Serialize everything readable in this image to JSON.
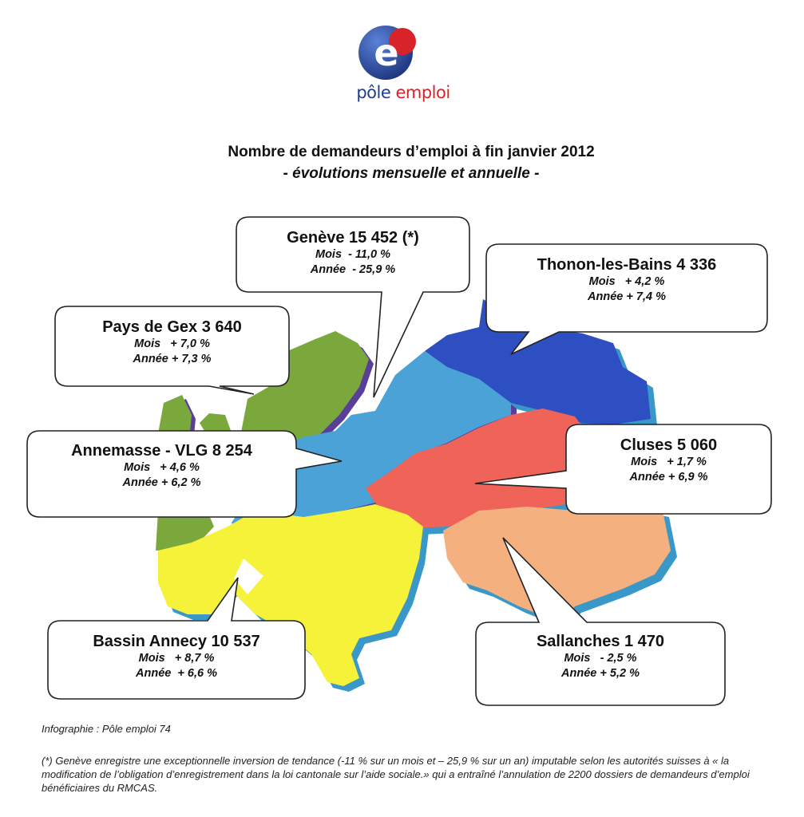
{
  "brand": {
    "text_part1": "pôle ",
    "text_part2": "emploi",
    "logo_letter": "e",
    "colors": {
      "blue": "#1f3d8a",
      "red": "#d8232a"
    }
  },
  "title": "Nombre de demandeurs d’emploi à fin janvier 2012",
  "subtitle": "- évolutions mensuelle et annuelle -",
  "regions": [
    {
      "name": "Genève  15 452 (*)",
      "mois_label": "Mois",
      "mois": "- 11,0 %",
      "annee_label": "Année",
      "annee": "- 25,9 %",
      "color": "#4aa2d6"
    },
    {
      "name": "Thonon-les-Bains 4 336",
      "mois_label": "Mois",
      "mois": "+ 4,2 %",
      "annee_label": "Année",
      "annee": "+ 7,4 %",
      "color": "#2d4fc2"
    },
    {
      "name": "Pays de Gex  3 640",
      "mois_label": "Mois",
      "mois": "+ 7,0  %",
      "annee_label": "Année",
      "annee": "+ 7,3 %",
      "color": "#7aa83c"
    },
    {
      "name": "Annemasse - VLG  8 254",
      "mois_label": "Mois",
      "mois": "+ 4,6 %",
      "annee_label": "Année",
      "annee": "+ 6,2  %",
      "color": "#4aa2d6"
    },
    {
      "name": "Cluses 5 060",
      "mois_label": "Mois",
      "mois": "+ 1,7  %",
      "annee_label": "Année",
      "annee": "+ 6,9 %",
      "color": "#ef6358"
    },
    {
      "name": "Bassin Annecy 10 537",
      "mois_label": "Mois",
      "mois": "+ 8,7 %",
      "annee_label": "Année",
      "annee": "+ 6,6 %",
      "color": "#f6f23a"
    },
    {
      "name": "Sallanches 1 470",
      "mois_label": "Mois",
      "mois": "- 2,5  %",
      "annee_label": "Année",
      "annee": "+ 5,2 %",
      "color": "#f4b07e"
    }
  ],
  "source": "Infographie : Pôle emploi 74",
  "footnote": "(*) Genève enregistre  une exceptionnelle inversion de tendance (-11 % sur un mois et – 25,9 % sur un an) imputable selon les autorités suisses à « la modification de l’obligation d’enregistrement dans la loi cantonale sur l’aide sociale.» qui a entraîné l’annulation de 2200 dossiers de demandeurs d’emploi bénéficiaires du RMCAS."
}
